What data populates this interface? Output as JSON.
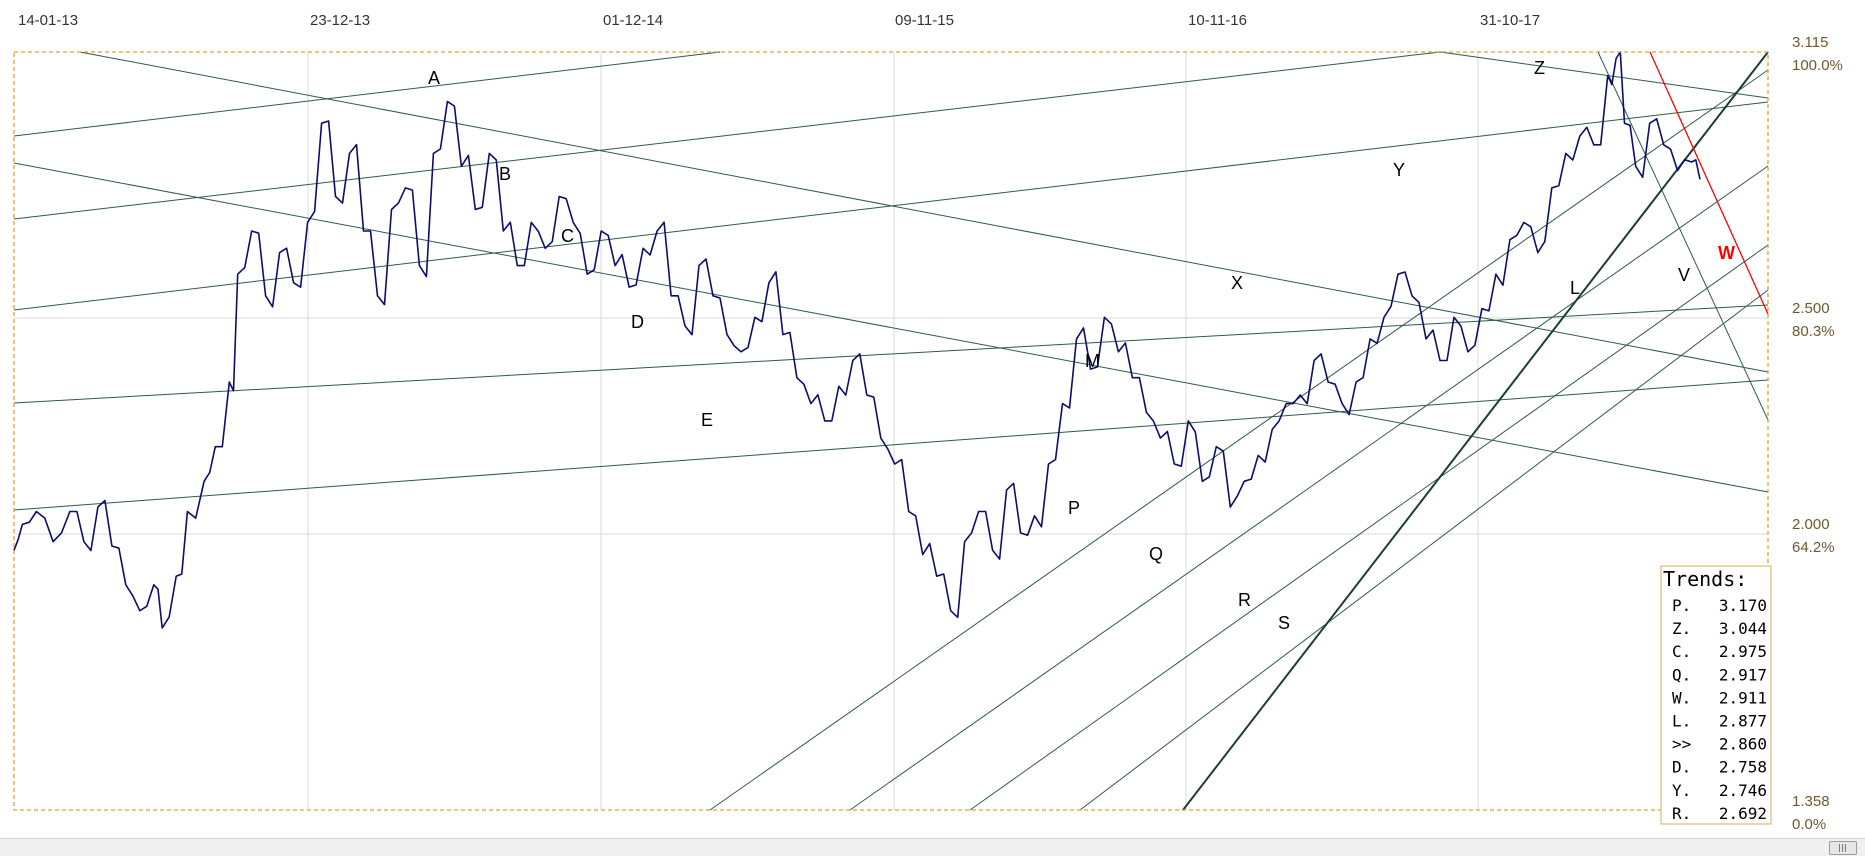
{
  "chart_data": {
    "type": "line",
    "title": "",
    "xlabel": "",
    "ylabel": "",
    "x_tick_labels": [
      "14-01-13",
      "23-12-13",
      "01-12-14",
      "09-11-15",
      "10-11-16",
      "31-10-17"
    ],
    "y_ticks": [
      {
        "value": "3.115",
        "pct": "100.0%"
      },
      {
        "value": "2.500",
        "pct": "80.3%"
      },
      {
        "value": "2.000",
        "pct": "64.2%"
      },
      {
        "value": "1.358",
        "pct": "0.0%"
      }
    ],
    "ylim": [
      1.358,
      3.115
    ],
    "grid": true,
    "colors": {
      "price": "#0d0d6b",
      "trend": "#2f5a4a",
      "highlight": "#ff0000",
      "frame": "#e0a030",
      "grid": "#d8d8d8"
    },
    "series": [
      {
        "x": [
          0,
          3,
          8,
          14,
          20,
          25,
          30,
          35,
          40,
          45,
          50,
          53,
          58,
          62,
          68,
          72,
          77,
          80,
          85,
          90,
          95,
          100,
          105,
          110,
          115,
          120,
          125,
          130,
          135,
          140,
          145,
          150,
          155,
          160,
          165,
          170,
          175,
          180,
          185,
          190,
          195,
          200,
          205,
          210,
          215,
          220,
          225,
          230,
          235,
          240,
          245,
          250,
          255,
          260,
          265,
          270,
          275,
          280,
          285,
          290,
          295,
          300,
          305,
          310,
          315,
          320,
          325,
          330,
          335,
          340,
          345,
          350,
          355,
          360,
          365,
          370,
          375,
          380,
          385,
          390,
          395,
          400,
          405,
          410,
          415,
          420,
          425,
          430,
          435,
          440,
          445,
          450,
          455,
          460,
          465,
          470,
          475,
          480,
          485,
          490,
          495,
          500,
          505,
          510,
          515,
          520,
          525,
          530,
          535,
          540,
          545,
          550,
          555,
          560,
          565,
          570,
          573,
          576,
          580,
          585,
          590,
          595,
          600,
          603
        ],
        "y": [
          1.96,
          2.02,
          2.05,
          1.98,
          2.05,
          1.98,
          2.06,
          1.97,
          1.88,
          1.82,
          1.88,
          1.78,
          1.9,
          2.05,
          2.12,
          2.2,
          2.35,
          2.6,
          2.7,
          2.55,
          2.65,
          2.58,
          2.72,
          2.95,
          2.78,
          2.88,
          2.7,
          2.55,
          2.75,
          2.8,
          2.62,
          2.88,
          3.0,
          2.85,
          2.75,
          2.88,
          2.7,
          2.62,
          2.72,
          2.66,
          2.78,
          2.72,
          2.6,
          2.7,
          2.62,
          2.57,
          2.66,
          2.7,
          2.55,
          2.48,
          2.62,
          2.55,
          2.46,
          2.42,
          2.5,
          2.58,
          2.46,
          2.36,
          2.3,
          2.26,
          2.34,
          2.4,
          2.32,
          2.22,
          2.16,
          2.05,
          1.95,
          1.9,
          1.82,
          1.98,
          2.05,
          1.96,
          2.1,
          2.0,
          2.04,
          2.16,
          2.3,
          2.45,
          2.38,
          2.5,
          2.42,
          2.36,
          2.28,
          2.22,
          2.16,
          2.26,
          2.12,
          2.2,
          2.06,
          2.12,
          2.18,
          2.24,
          2.3,
          2.32,
          2.4,
          2.35,
          2.3,
          2.35,
          2.45,
          2.5,
          2.6,
          2.55,
          2.45,
          2.4,
          2.5,
          2.42,
          2.52,
          2.6,
          2.68,
          2.72,
          2.65,
          2.8,
          2.88,
          2.92,
          2.9,
          3.06,
          3.1,
          2.95,
          2.85,
          2.95,
          2.9,
          2.84,
          2.86,
          2.82
        ]
      }
    ],
    "trendline_labels": [
      "A",
      "B",
      "C",
      "D",
      "E",
      "M",
      "P",
      "Q",
      "R",
      "S",
      "X",
      "Y",
      "Z",
      "L",
      "V",
      "W"
    ],
    "legend": {
      "title": "Trends:",
      "placement": "bottom-right",
      "items": [
        {
          "key": "P.",
          "value": "3.170",
          "highlight": false
        },
        {
          "key": "Z.",
          "value": "3.044",
          "highlight": false
        },
        {
          "key": "C.",
          "value": "2.975",
          "highlight": false
        },
        {
          "key": "Q.",
          "value": "2.917",
          "highlight": false
        },
        {
          "key": "W.",
          "value": "2.911",
          "highlight": true
        },
        {
          "key": "L.",
          "value": "2.877",
          "highlight": false
        },
        {
          "key": ">>",
          "value": "2.860",
          "highlight": false
        },
        {
          "key": "D.",
          "value": "2.758",
          "highlight": false
        },
        {
          "key": "Y.",
          "value": "2.746",
          "highlight": false
        },
        {
          "key": "R.",
          "value": "2.692",
          "highlight": false
        }
      ]
    }
  }
}
